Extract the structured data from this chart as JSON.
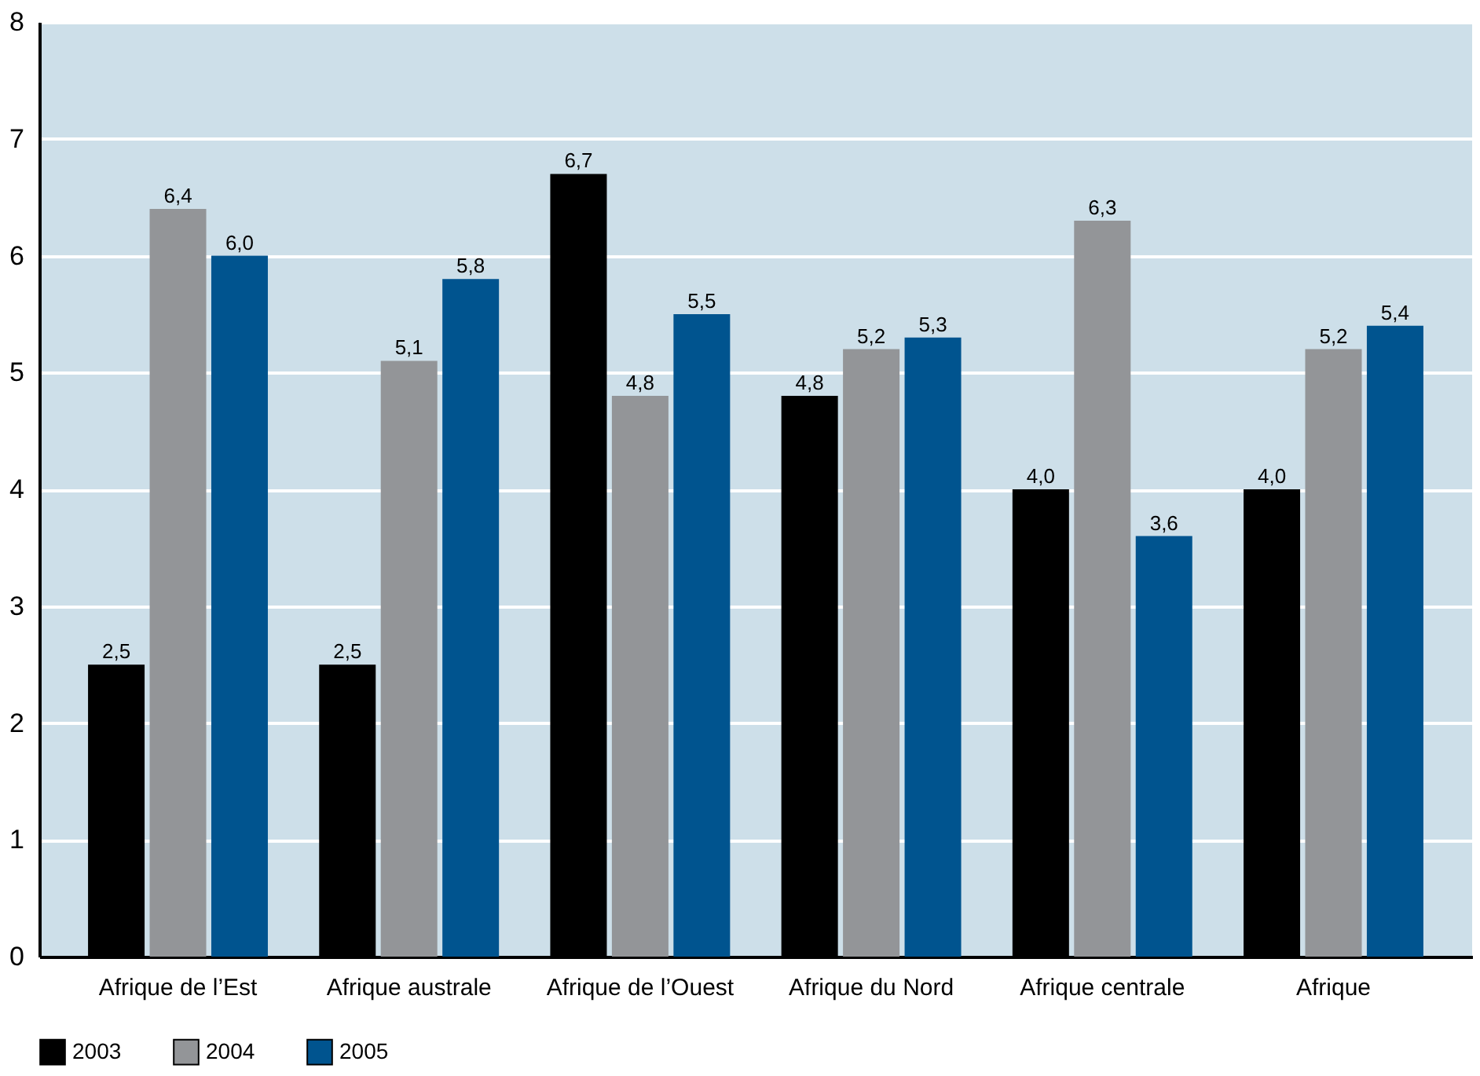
{
  "chart_data": {
    "type": "bar",
    "categories": [
      "Afrique de l’Est",
      "Afrique australe",
      "Afrique de l’Ouest",
      "Afrique du Nord",
      "Afrique centrale",
      "Afrique"
    ],
    "series": [
      {
        "name": "2003",
        "color": "#000000",
        "values": [
          2.5,
          2.5,
          6.7,
          4.8,
          4.0,
          4.0
        ],
        "value_labels": [
          "2,5",
          "2,5",
          "6,7",
          "4,8",
          "4,0",
          "4,0"
        ]
      },
      {
        "name": "2004",
        "color": "#939598",
        "values": [
          6.4,
          5.1,
          4.8,
          5.2,
          6.3,
          5.2
        ],
        "value_labels": [
          "6,4",
          "5,1",
          "4,8",
          "5,2",
          "6,3",
          "5,2"
        ]
      },
      {
        "name": "2005",
        "color": "#00548f",
        "values": [
          6.0,
          5.8,
          5.5,
          5.3,
          3.6,
          5.4
        ],
        "value_labels": [
          "6,0",
          "5,8",
          "5,5",
          "5,3",
          "3,6",
          "5,4"
        ]
      }
    ],
    "ylim": [
      0,
      8
    ],
    "yticks": [
      0,
      1,
      2,
      3,
      4,
      5,
      6,
      7,
      8
    ],
    "grid": "y",
    "legend": "bottom left"
  }
}
